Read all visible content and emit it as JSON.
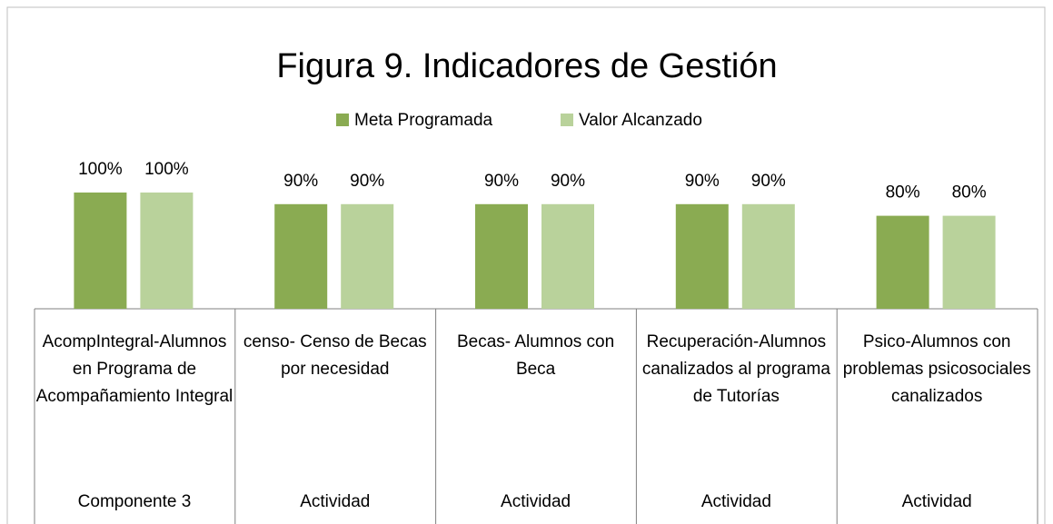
{
  "chart_data": {
    "type": "bar",
    "title": "Figura 9. Indicadores de Gestión",
    "categories": [
      "AcompIntegral-Alumnos en Programa de Acompañamiento Integral",
      "censo- Censo de Becas por necesidad",
      "Becas- Alumnos con Beca",
      "Recuperación-Alumnos canalizados al programa de Tutorías",
      "Psico-Alumnos con problemas psicosociales canalizados"
    ],
    "groups": [
      "Componente 3",
      "Actividad",
      "Actividad",
      "Actividad",
      "Actividad"
    ],
    "series": [
      {
        "name": "Meta Programada",
        "color": "#8aab52",
        "values": [
          100,
          90,
          90,
          90,
          80
        ],
        "value_labels": [
          "100%",
          "90%",
          "90%",
          "90%",
          "80%"
        ]
      },
      {
        "name": "Valor Alcanzado",
        "color": "#b9d29b",
        "values": [
          100,
          90,
          90,
          90,
          80
        ],
        "value_labels": [
          "100%",
          "90%",
          "90%",
          "90%",
          "80%"
        ]
      }
    ],
    "ylim": [
      0,
      120
    ],
    "legend": "top"
  }
}
